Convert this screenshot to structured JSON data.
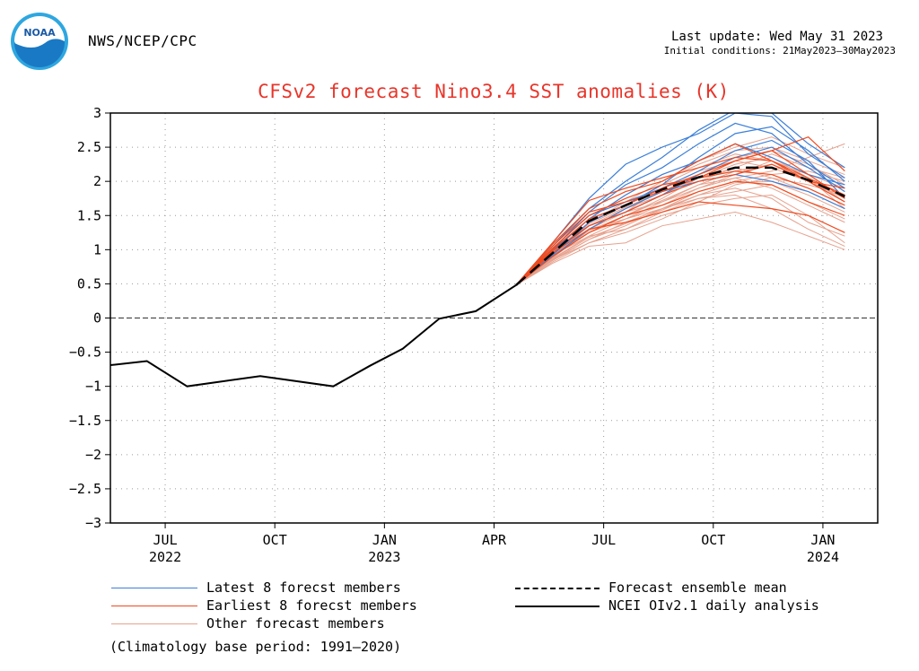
{
  "header": {
    "logo_text": "NOAA",
    "agency": "NWS/NCEP/CPC",
    "last_update": "Last update: Wed May 31 2023",
    "initial_conditions": "Initial conditions: 21May2023–30May2023"
  },
  "colors": {
    "latest": "#3b7fd9",
    "earliest": "#f04a1e",
    "other": "#e7a28e",
    "analysis": "#000000",
    "title": "#e8352a"
  },
  "chart_data": {
    "type": "line",
    "title": "CFSv2 forecast Nino3.4 SST anomalies (K)",
    "ylim": [
      -3,
      3
    ],
    "yticks": [
      "3",
      "2.5",
      "2",
      "1.5",
      "1",
      "0.5",
      "0",
      "−0.5",
      "−1",
      "−1.5",
      "−2",
      "−2.5",
      "−3"
    ],
    "ytick_values": [
      3,
      2.5,
      2,
      1.5,
      1,
      0.5,
      0,
      -0.5,
      -1,
      -1.5,
      -2,
      -2.5,
      -3
    ],
    "xlim_months": [
      0,
      21
    ],
    "xticks": [
      {
        "month": 1.5,
        "label": "JUL",
        "year": "2022"
      },
      {
        "month": 4.5,
        "label": "OCT",
        "year": ""
      },
      {
        "month": 7.5,
        "label": "JAN",
        "year": "2023"
      },
      {
        "month": 10.5,
        "label": "APR",
        "year": ""
      },
      {
        "month": 13.5,
        "label": "JUL",
        "year": ""
      },
      {
        "month": 16.5,
        "label": "OCT",
        "year": ""
      },
      {
        "month": 19.5,
        "label": "JAN",
        "year": "2024"
      }
    ],
    "grid": true,
    "zero_line": true,
    "analysis": {
      "name": "NCEI OIv2.1 daily analysis",
      "x": [
        0,
        1.0,
        2.1,
        4.1,
        6.1,
        7.1,
        8.0,
        9.0,
        10.0,
        11.1
      ],
      "y": [
        -0.69,
        -0.63,
        -1.0,
        -0.85,
        -1.0,
        -0.7,
        -0.45,
        -0.01,
        0.1,
        0.48
      ]
    },
    "ensemble_mean": {
      "name": "Forecast ensemble mean",
      "x": [
        11.1,
        12.1,
        13.1,
        14.1,
        15.1,
        16.1,
        17.1,
        18.1,
        19.1,
        20.1
      ],
      "y": [
        0.48,
        0.95,
        1.42,
        1.65,
        1.88,
        2.06,
        2.2,
        2.2,
        2.02,
        1.78
      ]
    },
    "latest_members": {
      "name": "Latest 8 forecst members",
      "x": [
        11.1,
        12.1,
        13.1,
        14.1,
        15.1,
        16.1,
        17.1,
        18.1,
        19.1,
        20.1
      ],
      "series": [
        [
          0.48,
          1.1,
          1.75,
          2.25,
          2.5,
          2.7,
          3.0,
          2.95,
          2.4,
          2.05
        ],
        [
          0.48,
          1.0,
          1.55,
          1.95,
          2.2,
          2.55,
          2.85,
          2.7,
          2.25,
          1.9
        ],
        [
          0.48,
          0.95,
          1.35,
          1.55,
          1.8,
          2.1,
          2.35,
          2.5,
          2.2,
          1.85
        ],
        [
          0.48,
          1.05,
          1.6,
          2.0,
          2.35,
          2.75,
          3.05,
          3.0,
          2.55,
          2.2
        ],
        [
          0.48,
          0.9,
          1.3,
          1.6,
          1.85,
          2.0,
          2.1,
          2.0,
          1.85,
          1.6
        ],
        [
          0.48,
          0.98,
          1.45,
          1.8,
          2.1,
          2.3,
          2.55,
          2.35,
          2.1,
          1.95
        ],
        [
          0.48,
          1.02,
          1.5,
          1.7,
          1.9,
          2.15,
          2.45,
          2.6,
          2.3,
          1.75
        ],
        [
          0.48,
          0.92,
          1.4,
          1.65,
          1.95,
          2.35,
          2.7,
          2.8,
          2.45,
          2.0
        ]
      ]
    },
    "earliest_members": {
      "name": "Earliest 8 forecst members",
      "x": [
        11.1,
        12.1,
        13.1,
        14.1,
        15.1,
        16.1,
        17.1,
        18.1,
        19.1,
        20.1
      ],
      "series": [
        [
          0.48,
          1.1,
          1.72,
          1.9,
          2.05,
          2.2,
          2.35,
          2.3,
          2.0,
          1.7
        ],
        [
          0.48,
          1.05,
          1.55,
          1.7,
          1.85,
          2.05,
          2.3,
          2.45,
          2.1,
          1.75
        ],
        [
          0.48,
          0.95,
          1.3,
          1.4,
          1.55,
          1.7,
          1.65,
          1.6,
          1.5,
          1.25
        ],
        [
          0.48,
          1.0,
          1.45,
          1.65,
          1.9,
          2.1,
          2.3,
          2.45,
          2.65,
          2.15
        ],
        [
          0.48,
          1.08,
          1.6,
          1.85,
          2.0,
          2.3,
          2.55,
          2.3,
          2.05,
          1.8
        ],
        [
          0.48,
          0.9,
          1.25,
          1.5,
          1.65,
          1.85,
          2.0,
          1.95,
          1.7,
          1.5
        ],
        [
          0.48,
          1.02,
          1.5,
          1.75,
          1.95,
          2.05,
          2.15,
          2.1,
          1.9,
          1.65
        ],
        [
          0.48,
          0.98,
          1.35,
          1.55,
          1.8,
          2.0,
          2.1,
          2.25,
          2.0,
          1.9
        ]
      ]
    },
    "other_members": {
      "name": "Other forecast members",
      "x": [
        11.1,
        12.1,
        13.1,
        14.1,
        15.1,
        16.1,
        17.1,
        18.1,
        19.1,
        20.1
      ],
      "series": [
        [
          0.48,
          0.85,
          1.15,
          1.35,
          1.6,
          1.85,
          2.0,
          2.1,
          2.15,
          2.0
        ],
        [
          0.48,
          0.9,
          1.25,
          1.5,
          1.75,
          2.05,
          2.25,
          2.35,
          2.05,
          1.7
        ],
        [
          0.48,
          0.8,
          1.05,
          1.1,
          1.35,
          1.45,
          1.55,
          1.4,
          1.2,
          1.0
        ],
        [
          0.48,
          0.95,
          1.4,
          1.7,
          2.0,
          2.25,
          2.45,
          2.5,
          2.3,
          2.1
        ],
        [
          0.48,
          0.88,
          1.3,
          1.55,
          1.7,
          1.9,
          2.05,
          2.15,
          2.35,
          2.55
        ],
        [
          0.48,
          0.92,
          1.2,
          1.3,
          1.5,
          1.65,
          1.75,
          1.8,
          1.5,
          1.1
        ],
        [
          0.48,
          0.97,
          1.45,
          1.8,
          2.1,
          2.3,
          2.5,
          2.65,
          2.4,
          2.2
        ],
        [
          0.48,
          0.85,
          1.1,
          1.25,
          1.45,
          1.7,
          1.95,
          2.05,
          1.85,
          1.6
        ],
        [
          0.48,
          0.9,
          1.35,
          1.6,
          1.85,
          2.0,
          2.2,
          2.05,
          1.95,
          1.8
        ],
        [
          0.48,
          0.93,
          1.3,
          1.45,
          1.6,
          1.8,
          1.9,
          1.75,
          1.4,
          1.2
        ],
        [
          0.48,
          0.87,
          1.2,
          1.45,
          1.65,
          1.9,
          2.1,
          2.3,
          2.1,
          1.9
        ],
        [
          0.48,
          0.95,
          1.35,
          1.55,
          1.9,
          2.15,
          2.3,
          2.2,
          2.0,
          1.7
        ],
        [
          0.48,
          0.82,
          1.1,
          1.3,
          1.55,
          1.75,
          1.85,
          1.95,
          1.7,
          1.45
        ],
        [
          0.48,
          0.9,
          1.25,
          1.45,
          1.7,
          1.95,
          2.15,
          2.25,
          2.05,
          1.6
        ],
        [
          0.48,
          0.96,
          1.4,
          1.65,
          1.95,
          2.2,
          2.4,
          2.3,
          2.0,
          1.75
        ],
        [
          0.48,
          0.84,
          1.15,
          1.4,
          1.6,
          1.75,
          1.8,
          1.6,
          1.3,
          1.05
        ],
        [
          0.48,
          0.91,
          1.3,
          1.6,
          1.8,
          2.05,
          2.2,
          2.4,
          2.2,
          2.05
        ],
        [
          0.48,
          0.88,
          1.28,
          1.5,
          1.72,
          1.95,
          2.05,
          1.9,
          1.65,
          1.4
        ],
        [
          0.48,
          0.94,
          1.38,
          1.62,
          1.85,
          2.1,
          2.35,
          2.45,
          2.25,
          1.95
        ],
        [
          0.48,
          0.86,
          1.18,
          1.38,
          1.58,
          1.8,
          1.98,
          2.0,
          1.8,
          1.55
        ]
      ]
    },
    "legend": {
      "latest": "Latest 8 forecst members",
      "earliest": "Earliest 8 forecst members",
      "other": "Other forecast members",
      "mean": "Forecast ensemble mean",
      "analysis": "NCEI OIv2.1 daily analysis"
    },
    "climatology_note": "(Climatology base period: 1991–2020)"
  }
}
